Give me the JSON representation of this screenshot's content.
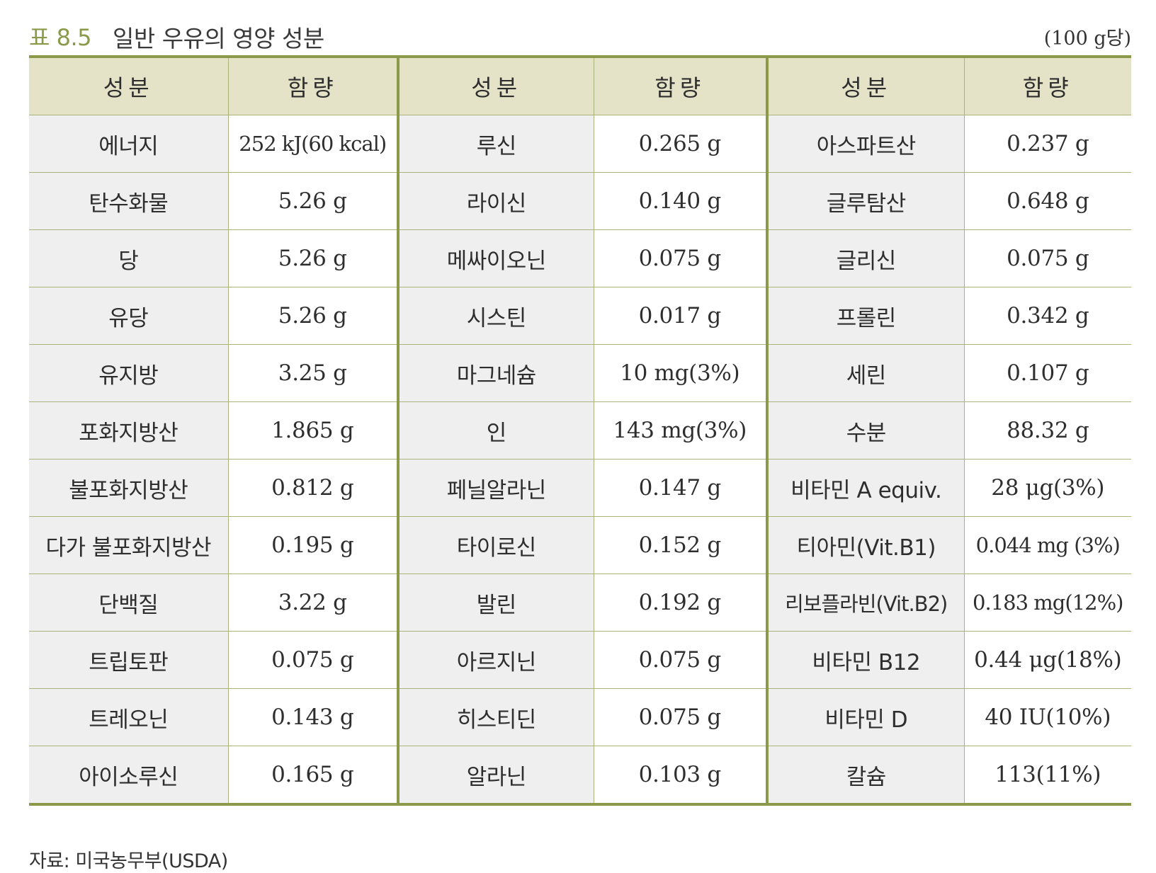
{
  "caption": {
    "table_label": "표 8.5",
    "title": "일반 우유의 영양 성분",
    "unit_note": "(100 g당)"
  },
  "table": {
    "headers": [
      "성분",
      "함량",
      "성분",
      "함량",
      "성분",
      "함량"
    ],
    "rows": [
      [
        "에너지",
        "252 kJ(60 kcal)",
        "루신",
        "0.265 g",
        "아스파트산",
        "0.237 g"
      ],
      [
        "탄수화물",
        "5.26 g",
        "라이신",
        "0.140 g",
        "글루탐산",
        "0.648 g"
      ],
      [
        "당",
        "5.26 g",
        "메싸이오닌",
        "0.075 g",
        "글리신",
        "0.075 g"
      ],
      [
        "유당",
        "5.26 g",
        "시스틴",
        "0.017 g",
        "프롤린",
        "0.342 g"
      ],
      [
        "유지방",
        "3.25 g",
        "마그네슘",
        "10 mg(3%)",
        "세린",
        "0.107 g"
      ],
      [
        "포화지방산",
        "1.865 g",
        "인",
        "143 mg(3%)",
        "수분",
        "88.32 g"
      ],
      [
        "불포화지방산",
        "0.812 g",
        "페닐알라닌",
        "0.147 g",
        "비타민 A equiv.",
        "28 μg(3%)"
      ],
      [
        "다가 불포화지방산",
        "0.195 g",
        "타이로신",
        "0.152 g",
        "티아민(Vit.B1)",
        "0.044 mg (3%)"
      ],
      [
        "단백질",
        "3.22 g",
        "발린",
        "0.192 g",
        "리보플라빈(Vit.B2)",
        "0.183 mg(12%)"
      ],
      [
        "트립토판",
        "0.075 g",
        "아르지닌",
        "0.075 g",
        "비타민 B12",
        "0.44 μg(18%)"
      ],
      [
        "트레오닌",
        "0.143 g",
        "히스티딘",
        "0.075 g",
        "비타민 D",
        "40 IU(10%)"
      ],
      [
        "아이소루신",
        "0.165 g",
        "알라닌",
        "0.103 g",
        "칼슘",
        "113(11%)"
      ]
    ]
  },
  "source": "자료: 미국농무부(USDA)",
  "colors": {
    "accent": "#8a9a4a",
    "header_bg": "#e4e2c7",
    "name_cell_bg": "#efefef",
    "row_line": "#a9b37a"
  }
}
